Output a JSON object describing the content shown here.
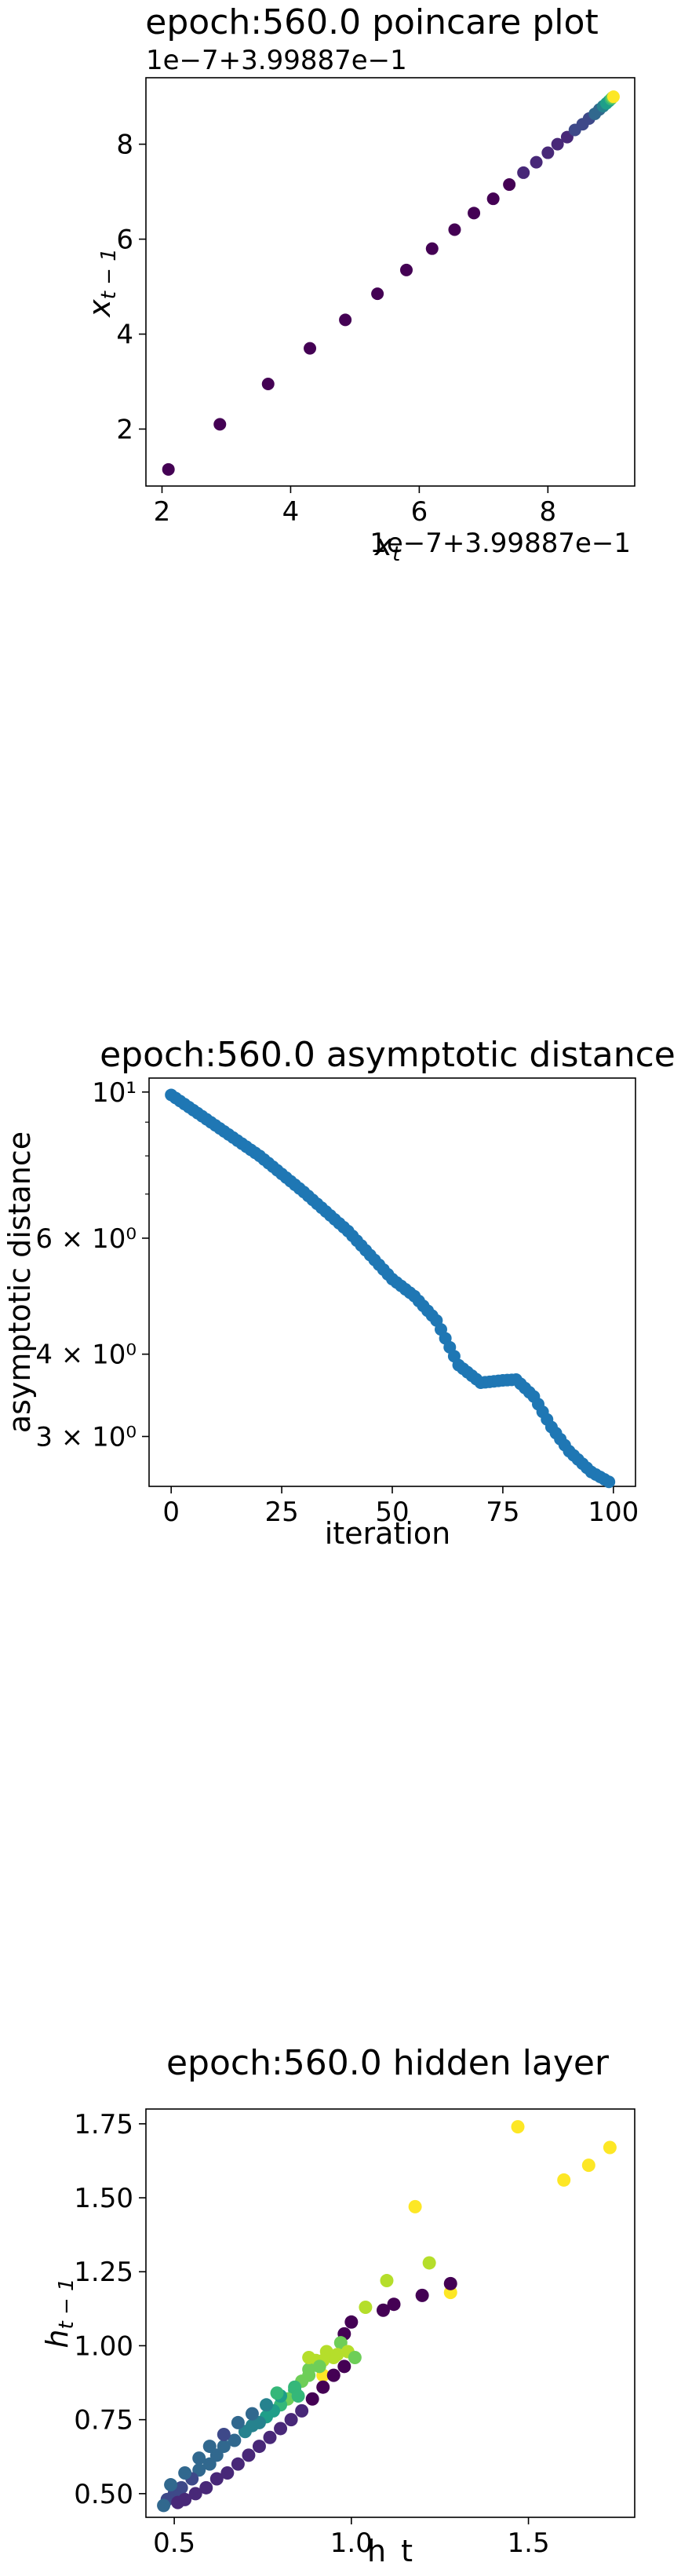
{
  "colors": {
    "viridis": [
      "#440154",
      "#482878",
      "#3e4989",
      "#31688e",
      "#26828e",
      "#1f9e89",
      "#35b779",
      "#6ece58",
      "#b5de2b",
      "#fde725"
    ],
    "series_blue": "#1f77b4"
  },
  "chart_data": [
    {
      "type": "scatter",
      "title": "epoch:560.0 poincare plot",
      "xlabel": "x_t",
      "ylabel": "x_{t-1}",
      "x_offset_label": "1e−7+3.99887e−1",
      "y_offset_label": "1e−7+3.99887e−1",
      "xlim": [
        1.75,
        9.35
      ],
      "ylim": [
        0.8,
        9.4
      ],
      "xticks": [
        2,
        4,
        6,
        8
      ],
      "yticks": [
        2,
        4,
        6,
        8
      ],
      "colormap": "viridis",
      "points": [
        [
          2.1,
          1.15
        ],
        [
          2.9,
          2.1
        ],
        [
          3.65,
          2.95
        ],
        [
          4.3,
          3.7
        ],
        [
          4.85,
          4.3
        ],
        [
          5.35,
          4.85
        ],
        [
          5.8,
          5.35
        ],
        [
          6.2,
          5.8
        ],
        [
          6.55,
          6.2
        ],
        [
          6.85,
          6.55
        ],
        [
          7.15,
          6.85
        ],
        [
          7.4,
          7.15
        ],
        [
          7.62,
          7.4
        ],
        [
          7.82,
          7.62
        ],
        [
          8.0,
          7.82
        ],
        [
          8.15,
          8.0
        ],
        [
          8.3,
          8.15
        ],
        [
          8.42,
          8.3
        ],
        [
          8.54,
          8.42
        ],
        [
          8.64,
          8.54
        ],
        [
          8.73,
          8.64
        ],
        [
          8.8,
          8.73
        ],
        [
          8.86,
          8.8
        ],
        [
          8.91,
          8.86
        ],
        [
          8.95,
          8.91
        ],
        [
          8.98,
          8.95
        ],
        [
          9.0,
          8.98
        ],
        [
          9.02,
          9.0
        ]
      ]
    },
    {
      "type": "scatter",
      "title": "epoch:560.0 asymptotic distance",
      "xlabel": "iteration",
      "ylabel": "asymptotic distance",
      "yscale": "log",
      "xlim": [
        -5,
        105
      ],
      "ylim": [
        2.52,
        10.5
      ],
      "xticks": [
        0,
        25,
        50,
        75,
        100
      ],
      "yticks": [
        {
          "value": 10,
          "label": "10¹"
        },
        {
          "value": 6,
          "label": "6 × 10⁰"
        },
        {
          "value": 4,
          "label": "4 × 10⁰"
        },
        {
          "value": 3,
          "label": "3 × 10⁰"
        }
      ],
      "y_minor_ticks": [
        7,
        8,
        9
      ],
      "anchors": [
        [
          0,
          9.9
        ],
        [
          10,
          8.9
        ],
        [
          20,
          8.0
        ],
        [
          30,
          7.05
        ],
        [
          40,
          6.15
        ],
        [
          50,
          5.2
        ],
        [
          55,
          4.9
        ],
        [
          60,
          4.5
        ],
        [
          65,
          3.85
        ],
        [
          70,
          3.62
        ],
        [
          75,
          3.65
        ],
        [
          78,
          3.66
        ],
        [
          82,
          3.45
        ],
        [
          86,
          3.1
        ],
        [
          90,
          2.85
        ],
        [
          95,
          2.65
        ],
        [
          99,
          2.56
        ]
      ]
    },
    {
      "type": "scatter",
      "title": "epoch:560.0 hidden layer",
      "xlabel": "h_t",
      "ylabel": "h_{t-1}",
      "xlim": [
        0.42,
        1.8
      ],
      "ylim": [
        0.42,
        1.8
      ],
      "xticks": [
        0.5,
        1.0,
        1.5
      ],
      "yticks": [
        0.5,
        0.75,
        1.0,
        1.25,
        1.5,
        1.75
      ],
      "colormap": "viridis",
      "points": [
        [
          1.47,
          1.74,
          9
        ],
        [
          1.6,
          1.56,
          9
        ],
        [
          1.67,
          1.61,
          9
        ],
        [
          1.73,
          1.67,
          9
        ],
        [
          1.18,
          1.47,
          9
        ],
        [
          1.22,
          1.28,
          8
        ],
        [
          1.1,
          1.22,
          8
        ],
        [
          1.28,
          1.18,
          9
        ],
        [
          1.28,
          1.21,
          0
        ],
        [
          1.2,
          1.17,
          0
        ],
        [
          1.12,
          1.14,
          0
        ],
        [
          1.09,
          1.12,
          0
        ],
        [
          1.04,
          1.13,
          8
        ],
        [
          1.0,
          1.08,
          0
        ],
        [
          0.98,
          1.04,
          0
        ],
        [
          0.97,
          1.01,
          7
        ],
        [
          0.95,
          0.96,
          8
        ],
        [
          0.93,
          0.98,
          8
        ],
        [
          0.9,
          0.95,
          8
        ],
        [
          0.92,
          0.9,
          9
        ],
        [
          0.88,
          0.92,
          7
        ],
        [
          0.86,
          0.88,
          7
        ],
        [
          0.84,
          0.85,
          6
        ],
        [
          0.82,
          0.82,
          7
        ],
        [
          0.8,
          0.8,
          6
        ],
        [
          0.78,
          0.78,
          5
        ],
        [
          0.76,
          0.76,
          5
        ],
        [
          0.74,
          0.74,
          4
        ],
        [
          0.72,
          0.73,
          4
        ],
        [
          0.7,
          0.71,
          4
        ],
        [
          0.67,
          0.68,
          3
        ],
        [
          0.64,
          0.66,
          3
        ],
        [
          0.62,
          0.63,
          3
        ],
        [
          0.6,
          0.6,
          3
        ],
        [
          0.57,
          0.58,
          3
        ],
        [
          0.55,
          0.55,
          2
        ],
        [
          0.52,
          0.52,
          2
        ],
        [
          0.5,
          0.5,
          2
        ],
        [
          0.48,
          0.48,
          2
        ],
        [
          0.47,
          0.46,
          3
        ],
        [
          0.49,
          0.53,
          3
        ],
        [
          0.53,
          0.57,
          3
        ],
        [
          0.57,
          0.62,
          3
        ],
        [
          0.6,
          0.66,
          3
        ],
        [
          0.64,
          0.7,
          2
        ],
        [
          0.68,
          0.74,
          3
        ],
        [
          0.72,
          0.77,
          3
        ],
        [
          0.76,
          0.8,
          4
        ],
        [
          0.8,
          0.83,
          5
        ],
        [
          0.84,
          0.86,
          6
        ],
        [
          0.88,
          0.9,
          7
        ],
        [
          0.92,
          0.95,
          8
        ],
        [
          0.96,
          0.97,
          8
        ],
        [
          0.99,
          0.98,
          8
        ],
        [
          0.83,
          0.75,
          1
        ],
        [
          0.8,
          0.72,
          1
        ],
        [
          0.77,
          0.69,
          1
        ],
        [
          0.74,
          0.66,
          1
        ],
        [
          0.71,
          0.63,
          1
        ],
        [
          0.68,
          0.6,
          1
        ],
        [
          0.65,
          0.57,
          1
        ],
        [
          0.62,
          0.55,
          1
        ],
        [
          0.59,
          0.52,
          1
        ],
        [
          0.56,
          0.5,
          1
        ],
        [
          0.53,
          0.48,
          1
        ],
        [
          0.51,
          0.47,
          1
        ],
        [
          0.86,
          0.78,
          1
        ],
        [
          0.89,
          0.82,
          0
        ],
        [
          0.92,
          0.86,
          0
        ],
        [
          0.95,
          0.9,
          0
        ],
        [
          0.98,
          0.93,
          0
        ],
        [
          1.01,
          0.96,
          7
        ],
        [
          0.88,
          0.96,
          8
        ],
        [
          0.91,
          0.93,
          7
        ],
        [
          0.85,
          0.83,
          6
        ],
        [
          0.79,
          0.84,
          6
        ]
      ]
    }
  ]
}
